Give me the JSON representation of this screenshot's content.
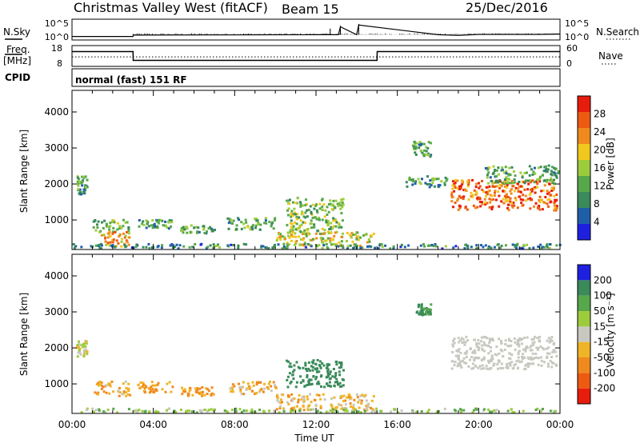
{
  "header": {
    "station": "Christmas Valley West (fitACF)",
    "beam": "Beam 15",
    "date": "25/Dec/2016"
  },
  "labels": {
    "nsky": "N.Sky",
    "nsearch": "N.Search",
    "freq": "Freq.",
    "freq_unit": "[MHz]",
    "nave": "Nave",
    "cpid": "CPID",
    "mode": "normal (fast) 151 RF",
    "ylabel": "Slant Range [km]",
    "xlabel": "Time UT",
    "power_label": "Power [dB]",
    "velocity_label": "Velocity [m s⁻¹]"
  },
  "colors": {
    "power_scale": [
      "#1f1fe0",
      "#1f5fa8",
      "#3a8a5a",
      "#56a84a",
      "#9ccc3c",
      "#f0c81e",
      "#f08a1e",
      "#ee5a12",
      "#e81c0c"
    ],
    "velocity_scale": [
      "#e81c0c",
      "#ee5a12",
      "#f08a1e",
      "#f0b428",
      "#c8c8c0",
      "#9ccc3c",
      "#56a84a",
      "#3a8a5a",
      "#1f1fe0"
    ],
    "nsky_line": "#000000",
    "gray_ground": "#c8c8c0"
  },
  "chart_data": [
    {
      "type": "line",
      "name": "N.Sky / N.Search",
      "y_ticks_left": [
        "10^5",
        "10^0"
      ],
      "y_ticks_right": [
        "10^5",
        "10^0"
      ],
      "x": [
        0,
        1,
        2,
        3,
        3.01,
        12,
        13.1,
        13.2,
        14,
        14.1,
        18,
        19,
        20,
        22,
        23,
        24
      ],
      "y_log": [
        0.3,
        0.3,
        0.3,
        0.3,
        0.7,
        0.8,
        0.8,
        3.0,
        0.8,
        3.5,
        0.8,
        0.6,
        0.9,
        0.9,
        0.9,
        1.0
      ]
    },
    {
      "type": "line",
      "name": "Freq / Nave",
      "left_ticks": [
        "18",
        "8"
      ],
      "right_ticks": [
        "60",
        "0"
      ],
      "x": [
        0,
        3,
        3.01,
        15,
        15.01,
        24
      ],
      "freq": [
        15.5,
        15.5,
        10.5,
        10.5,
        15.5,
        15.5
      ],
      "nave_dotted": 12.5
    },
    {
      "type": "heatmap",
      "name": "Power",
      "x_range_hours": [
        0,
        24
      ],
      "y_range_km": [
        180,
        4600
      ],
      "x_ticks": [
        "00:00",
        "04:00",
        "08:00",
        "12:00",
        "16:00",
        "20:00",
        "00:00"
      ],
      "y_ticks": [
        "1000",
        "2000",
        "3000",
        "4000"
      ],
      "colorbar_ticks": [
        "4",
        "8",
        "12",
        "16",
        "20",
        "24",
        "28"
      ],
      "colorbar_range": [
        0,
        32
      ],
      "regions": [
        {
          "t0": 0.2,
          "t1": 0.7,
          "r0": 1700,
          "r1": 2200,
          "value": 11
        },
        {
          "t0": 1.0,
          "t1": 2.8,
          "r0": 650,
          "r1": 1000,
          "value": 13
        },
        {
          "t0": 1.3,
          "t1": 2.8,
          "r0": 250,
          "r1": 650,
          "value": 22
        },
        {
          "t0": 3.2,
          "t1": 4.9,
          "r0": 750,
          "r1": 1000,
          "value": 12
        },
        {
          "t0": 5.3,
          "t1": 7.0,
          "r0": 620,
          "r1": 850,
          "value": 12
        },
        {
          "t0": 7.6,
          "t1": 10.0,
          "r0": 700,
          "r1": 1050,
          "value": 12
        },
        {
          "t0": 10.5,
          "t1": 13.3,
          "r0": 600,
          "r1": 1600,
          "value": 14
        },
        {
          "t0": 10.0,
          "t1": 14.8,
          "r0": 250,
          "r1": 650,
          "value": 18
        },
        {
          "t0": 16.7,
          "t1": 17.6,
          "r0": 2750,
          "r1": 3200,
          "value": 12
        },
        {
          "t0": 16.4,
          "t1": 18.4,
          "r0": 1900,
          "r1": 2200,
          "value": 10
        },
        {
          "t0": 18.6,
          "t1": 23.8,
          "r0": 1250,
          "r1": 2100,
          "value": 25
        },
        {
          "t0": 20.2,
          "t1": 23.9,
          "r0": 2000,
          "r1": 2500,
          "value": 12
        },
        {
          "t0": 0.0,
          "t1": 24.0,
          "r0": 190,
          "r1": 320,
          "value": 9
        }
      ]
    },
    {
      "type": "heatmap",
      "name": "Velocity",
      "x_range_hours": [
        0,
        24
      ],
      "y_range_km": [
        180,
        4600
      ],
      "x_ticks": [
        "00:00",
        "04:00",
        "08:00",
        "12:00",
        "16:00",
        "20:00",
        "00:00"
      ],
      "y_ticks": [
        "1000",
        "2000",
        "3000",
        "4000"
      ],
      "colorbar_ticks": [
        "200",
        "100",
        "50",
        "15",
        "-15",
        "-50",
        "-100",
        "-200"
      ],
      "regions": [
        {
          "t0": 0.2,
          "t1": 0.7,
          "r0": 1750,
          "r1": 2200,
          "value": 5
        },
        {
          "t0": 1.0,
          "t1": 2.8,
          "r0": 650,
          "r1": 1050,
          "value": -40
        },
        {
          "t0": 3.2,
          "t1": 4.9,
          "r0": 750,
          "r1": 1050,
          "value": -60
        },
        {
          "t0": 5.3,
          "t1": 7.0,
          "r0": 650,
          "r1": 900,
          "value": -60
        },
        {
          "t0": 7.6,
          "t1": 10.0,
          "r0": 700,
          "r1": 1050,
          "value": -40
        },
        {
          "t0": 10.5,
          "t1": 13.3,
          "r0": 900,
          "r1": 1650,
          "value": 150
        },
        {
          "t0": 10.0,
          "t1": 14.8,
          "r0": 250,
          "r1": 700,
          "value": -30
        },
        {
          "t0": 16.9,
          "t1": 17.6,
          "r0": 2900,
          "r1": 3200,
          "value": 120
        },
        {
          "t0": 18.6,
          "t1": 23.8,
          "r0": 1400,
          "r1": 2300,
          "value": 0
        },
        {
          "t0": 0.0,
          "t1": 24.0,
          "r0": 190,
          "r1": 300,
          "value": 40
        }
      ]
    }
  ]
}
